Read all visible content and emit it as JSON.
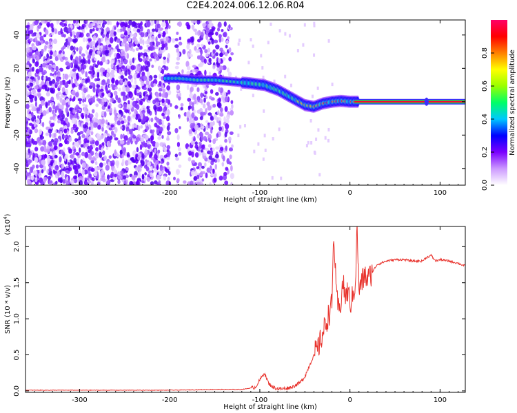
{
  "title": "C2E4.2024.006.12.06.R04",
  "chart_data": [
    {
      "type": "heatmap",
      "xlabel": "Height of straight line (km)",
      "ylabel": "Frequency (Hz)",
      "xlim": [
        -360,
        128
      ],
      "ylim": [
        -50,
        49
      ],
      "xticks": [
        -300,
        -200,
        -100,
        0,
        100
      ],
      "xtick_labels": [
        "-300",
        "-200",
        "-100",
        "0",
        "100"
      ],
      "yticks": [
        -40,
        -20,
        0,
        20,
        40
      ],
      "ytick_labels": [
        "-40",
        "-20",
        "0",
        "20",
        "40"
      ],
      "colorbar": {
        "label": "Normalized spectral amplitude",
        "range": [
          0,
          1
        ],
        "ticks": [
          0,
          0.2,
          0.4,
          0.6,
          0.8
        ],
        "tick_labels": [
          "0.0",
          "0.2",
          "0.4",
          "0.6",
          "0.8"
        ],
        "colors": [
          "#ffffff",
          "#cc99ff",
          "#7a00ff",
          "#0000ff",
          "#00c8ff",
          "#00ff66",
          "#99ff00",
          "#ffff00",
          "#ff8000",
          "#ff0000",
          "#ff0066"
        ]
      },
      "signal_track": {
        "x": [
          -205,
          -190,
          -170,
          -150,
          -130,
          -110,
          -95,
          -80,
          -70,
          -60,
          -50,
          -40,
          -30,
          -20,
          -10,
          0,
          10,
          128
        ],
        "frequency": [
          14,
          14,
          13,
          13,
          12,
          11,
          10,
          7,
          4,
          1,
          -2,
          -3,
          -1,
          0,
          0.5,
          0,
          0,
          0
        ]
      },
      "noise_region_x": [
        -360,
        -130
      ]
    },
    {
      "type": "line",
      "xlabel": "Height of straight line (km)",
      "ylabel": "SNR (10 * v/v)",
      "yscale_label": "(x10",
      "yscale_exponent": "4",
      "yscale_close": ")",
      "xlim": [
        -360,
        128
      ],
      "ylim": [
        -0.02,
        2.28
      ],
      "xticks": [
        -300,
        -200,
        -100,
        0,
        100
      ],
      "xtick_labels": [
        "-300",
        "-200",
        "-100",
        "0",
        "100"
      ],
      "yticks": [
        0,
        0.5,
        1,
        1.5,
        2
      ],
      "ytick_labels": [
        "0.0",
        "0.5",
        "1.0",
        "1.5",
        "2.0"
      ],
      "series": [
        {
          "color": "#e8322c",
          "x": [
            -360,
            -300,
            -200,
            -150,
            -120,
            -105,
            -100,
            -95,
            -90,
            -85,
            -80,
            -75,
            -70,
            -65,
            -60,
            -55,
            -50,
            -45,
            -40,
            -35,
            -30,
            -25,
            -20,
            -18,
            -15,
            -12,
            -10,
            -8,
            -5,
            -2,
            0,
            3,
            6,
            8,
            10,
            13,
            16,
            20,
            25,
            30,
            40,
            50,
            60,
            70,
            80,
            85,
            90,
            95,
            100,
            110,
            120,
            128
          ],
          "y": [
            0.01,
            0.01,
            0.01,
            0.02,
            0.02,
            0.05,
            0.15,
            0.25,
            0.1,
            0.05,
            0.03,
            0.03,
            0.04,
            0.05,
            0.08,
            0.12,
            0.2,
            0.35,
            0.5,
            0.6,
            0.8,
            1.0,
            1.2,
            2.2,
            1.3,
            1.1,
            1.25,
            1.5,
            1.3,
            1.4,
            1.2,
            1.3,
            1.5,
            2.28,
            1.4,
            1.5,
            1.6,
            1.55,
            1.65,
            1.75,
            1.8,
            1.82,
            1.82,
            1.8,
            1.8,
            1.85,
            1.88,
            1.8,
            1.82,
            1.8,
            1.77,
            1.73
          ]
        }
      ]
    }
  ]
}
